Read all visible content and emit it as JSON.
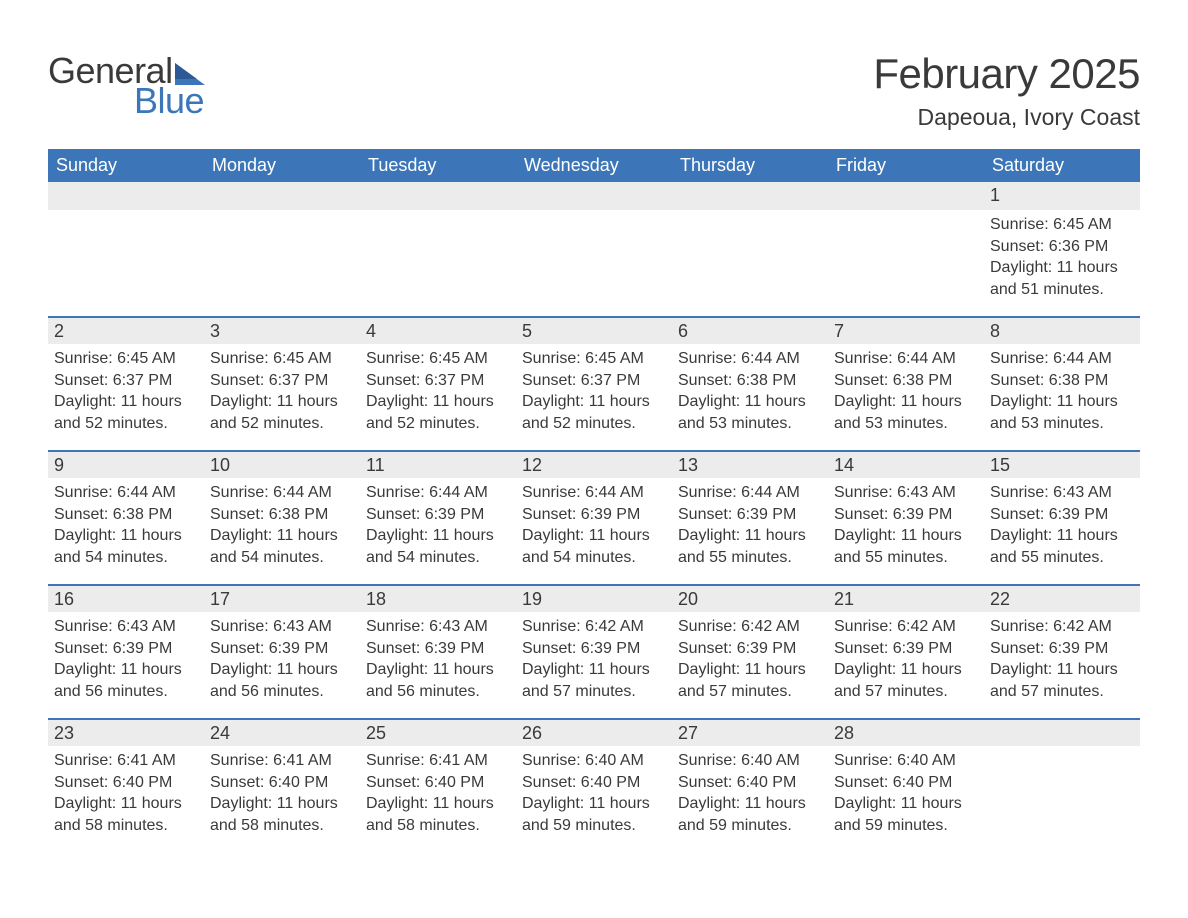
{
  "brand": {
    "word1": "General",
    "word2": "Blue",
    "text_color": "#3a3a3a",
    "accent_color": "#3d76b8"
  },
  "title": "February 2025",
  "location": "Dapeoua, Ivory Coast",
  "colors": {
    "header_bg": "#3d76b8",
    "header_text": "#ffffff",
    "daynum_bg": "#ececec",
    "row_border": "#3d76b8",
    "page_bg": "#ffffff",
    "body_text": "#3a3a3a"
  },
  "weekday_headers": [
    "Sunday",
    "Monday",
    "Tuesday",
    "Wednesday",
    "Thursday",
    "Friday",
    "Saturday"
  ],
  "weeks": [
    [
      {
        "n": "",
        "sr": "",
        "ss": "",
        "dl": ""
      },
      {
        "n": "",
        "sr": "",
        "ss": "",
        "dl": ""
      },
      {
        "n": "",
        "sr": "",
        "ss": "",
        "dl": ""
      },
      {
        "n": "",
        "sr": "",
        "ss": "",
        "dl": ""
      },
      {
        "n": "",
        "sr": "",
        "ss": "",
        "dl": ""
      },
      {
        "n": "",
        "sr": "",
        "ss": "",
        "dl": ""
      },
      {
        "n": "1",
        "sr": "Sunrise: 6:45 AM",
        "ss": "Sunset: 6:36 PM",
        "dl": "Daylight: 11 hours and 51 minutes."
      }
    ],
    [
      {
        "n": "2",
        "sr": "Sunrise: 6:45 AM",
        "ss": "Sunset: 6:37 PM",
        "dl": "Daylight: 11 hours and 52 minutes."
      },
      {
        "n": "3",
        "sr": "Sunrise: 6:45 AM",
        "ss": "Sunset: 6:37 PM",
        "dl": "Daylight: 11 hours and 52 minutes."
      },
      {
        "n": "4",
        "sr": "Sunrise: 6:45 AM",
        "ss": "Sunset: 6:37 PM",
        "dl": "Daylight: 11 hours and 52 minutes."
      },
      {
        "n": "5",
        "sr": "Sunrise: 6:45 AM",
        "ss": "Sunset: 6:37 PM",
        "dl": "Daylight: 11 hours and 52 minutes."
      },
      {
        "n": "6",
        "sr": "Sunrise: 6:44 AM",
        "ss": "Sunset: 6:38 PM",
        "dl": "Daylight: 11 hours and 53 minutes."
      },
      {
        "n": "7",
        "sr": "Sunrise: 6:44 AM",
        "ss": "Sunset: 6:38 PM",
        "dl": "Daylight: 11 hours and 53 minutes."
      },
      {
        "n": "8",
        "sr": "Sunrise: 6:44 AM",
        "ss": "Sunset: 6:38 PM",
        "dl": "Daylight: 11 hours and 53 minutes."
      }
    ],
    [
      {
        "n": "9",
        "sr": "Sunrise: 6:44 AM",
        "ss": "Sunset: 6:38 PM",
        "dl": "Daylight: 11 hours and 54 minutes."
      },
      {
        "n": "10",
        "sr": "Sunrise: 6:44 AM",
        "ss": "Sunset: 6:38 PM",
        "dl": "Daylight: 11 hours and 54 minutes."
      },
      {
        "n": "11",
        "sr": "Sunrise: 6:44 AM",
        "ss": "Sunset: 6:39 PM",
        "dl": "Daylight: 11 hours and 54 minutes."
      },
      {
        "n": "12",
        "sr": "Sunrise: 6:44 AM",
        "ss": "Sunset: 6:39 PM",
        "dl": "Daylight: 11 hours and 54 minutes."
      },
      {
        "n": "13",
        "sr": "Sunrise: 6:44 AM",
        "ss": "Sunset: 6:39 PM",
        "dl": "Daylight: 11 hours and 55 minutes."
      },
      {
        "n": "14",
        "sr": "Sunrise: 6:43 AM",
        "ss": "Sunset: 6:39 PM",
        "dl": "Daylight: 11 hours and 55 minutes."
      },
      {
        "n": "15",
        "sr": "Sunrise: 6:43 AM",
        "ss": "Sunset: 6:39 PM",
        "dl": "Daylight: 11 hours and 55 minutes."
      }
    ],
    [
      {
        "n": "16",
        "sr": "Sunrise: 6:43 AM",
        "ss": "Sunset: 6:39 PM",
        "dl": "Daylight: 11 hours and 56 minutes."
      },
      {
        "n": "17",
        "sr": "Sunrise: 6:43 AM",
        "ss": "Sunset: 6:39 PM",
        "dl": "Daylight: 11 hours and 56 minutes."
      },
      {
        "n": "18",
        "sr": "Sunrise: 6:43 AM",
        "ss": "Sunset: 6:39 PM",
        "dl": "Daylight: 11 hours and 56 minutes."
      },
      {
        "n": "19",
        "sr": "Sunrise: 6:42 AM",
        "ss": "Sunset: 6:39 PM",
        "dl": "Daylight: 11 hours and 57 minutes."
      },
      {
        "n": "20",
        "sr": "Sunrise: 6:42 AM",
        "ss": "Sunset: 6:39 PM",
        "dl": "Daylight: 11 hours and 57 minutes."
      },
      {
        "n": "21",
        "sr": "Sunrise: 6:42 AM",
        "ss": "Sunset: 6:39 PM",
        "dl": "Daylight: 11 hours and 57 minutes."
      },
      {
        "n": "22",
        "sr": "Sunrise: 6:42 AM",
        "ss": "Sunset: 6:39 PM",
        "dl": "Daylight: 11 hours and 57 minutes."
      }
    ],
    [
      {
        "n": "23",
        "sr": "Sunrise: 6:41 AM",
        "ss": "Sunset: 6:40 PM",
        "dl": "Daylight: 11 hours and 58 minutes."
      },
      {
        "n": "24",
        "sr": "Sunrise: 6:41 AM",
        "ss": "Sunset: 6:40 PM",
        "dl": "Daylight: 11 hours and 58 minutes."
      },
      {
        "n": "25",
        "sr": "Sunrise: 6:41 AM",
        "ss": "Sunset: 6:40 PM",
        "dl": "Daylight: 11 hours and 58 minutes."
      },
      {
        "n": "26",
        "sr": "Sunrise: 6:40 AM",
        "ss": "Sunset: 6:40 PM",
        "dl": "Daylight: 11 hours and 59 minutes."
      },
      {
        "n": "27",
        "sr": "Sunrise: 6:40 AM",
        "ss": "Sunset: 6:40 PM",
        "dl": "Daylight: 11 hours and 59 minutes."
      },
      {
        "n": "28",
        "sr": "Sunrise: 6:40 AM",
        "ss": "Sunset: 6:40 PM",
        "dl": "Daylight: 11 hours and 59 minutes."
      },
      {
        "n": "",
        "sr": "",
        "ss": "",
        "dl": ""
      }
    ]
  ]
}
